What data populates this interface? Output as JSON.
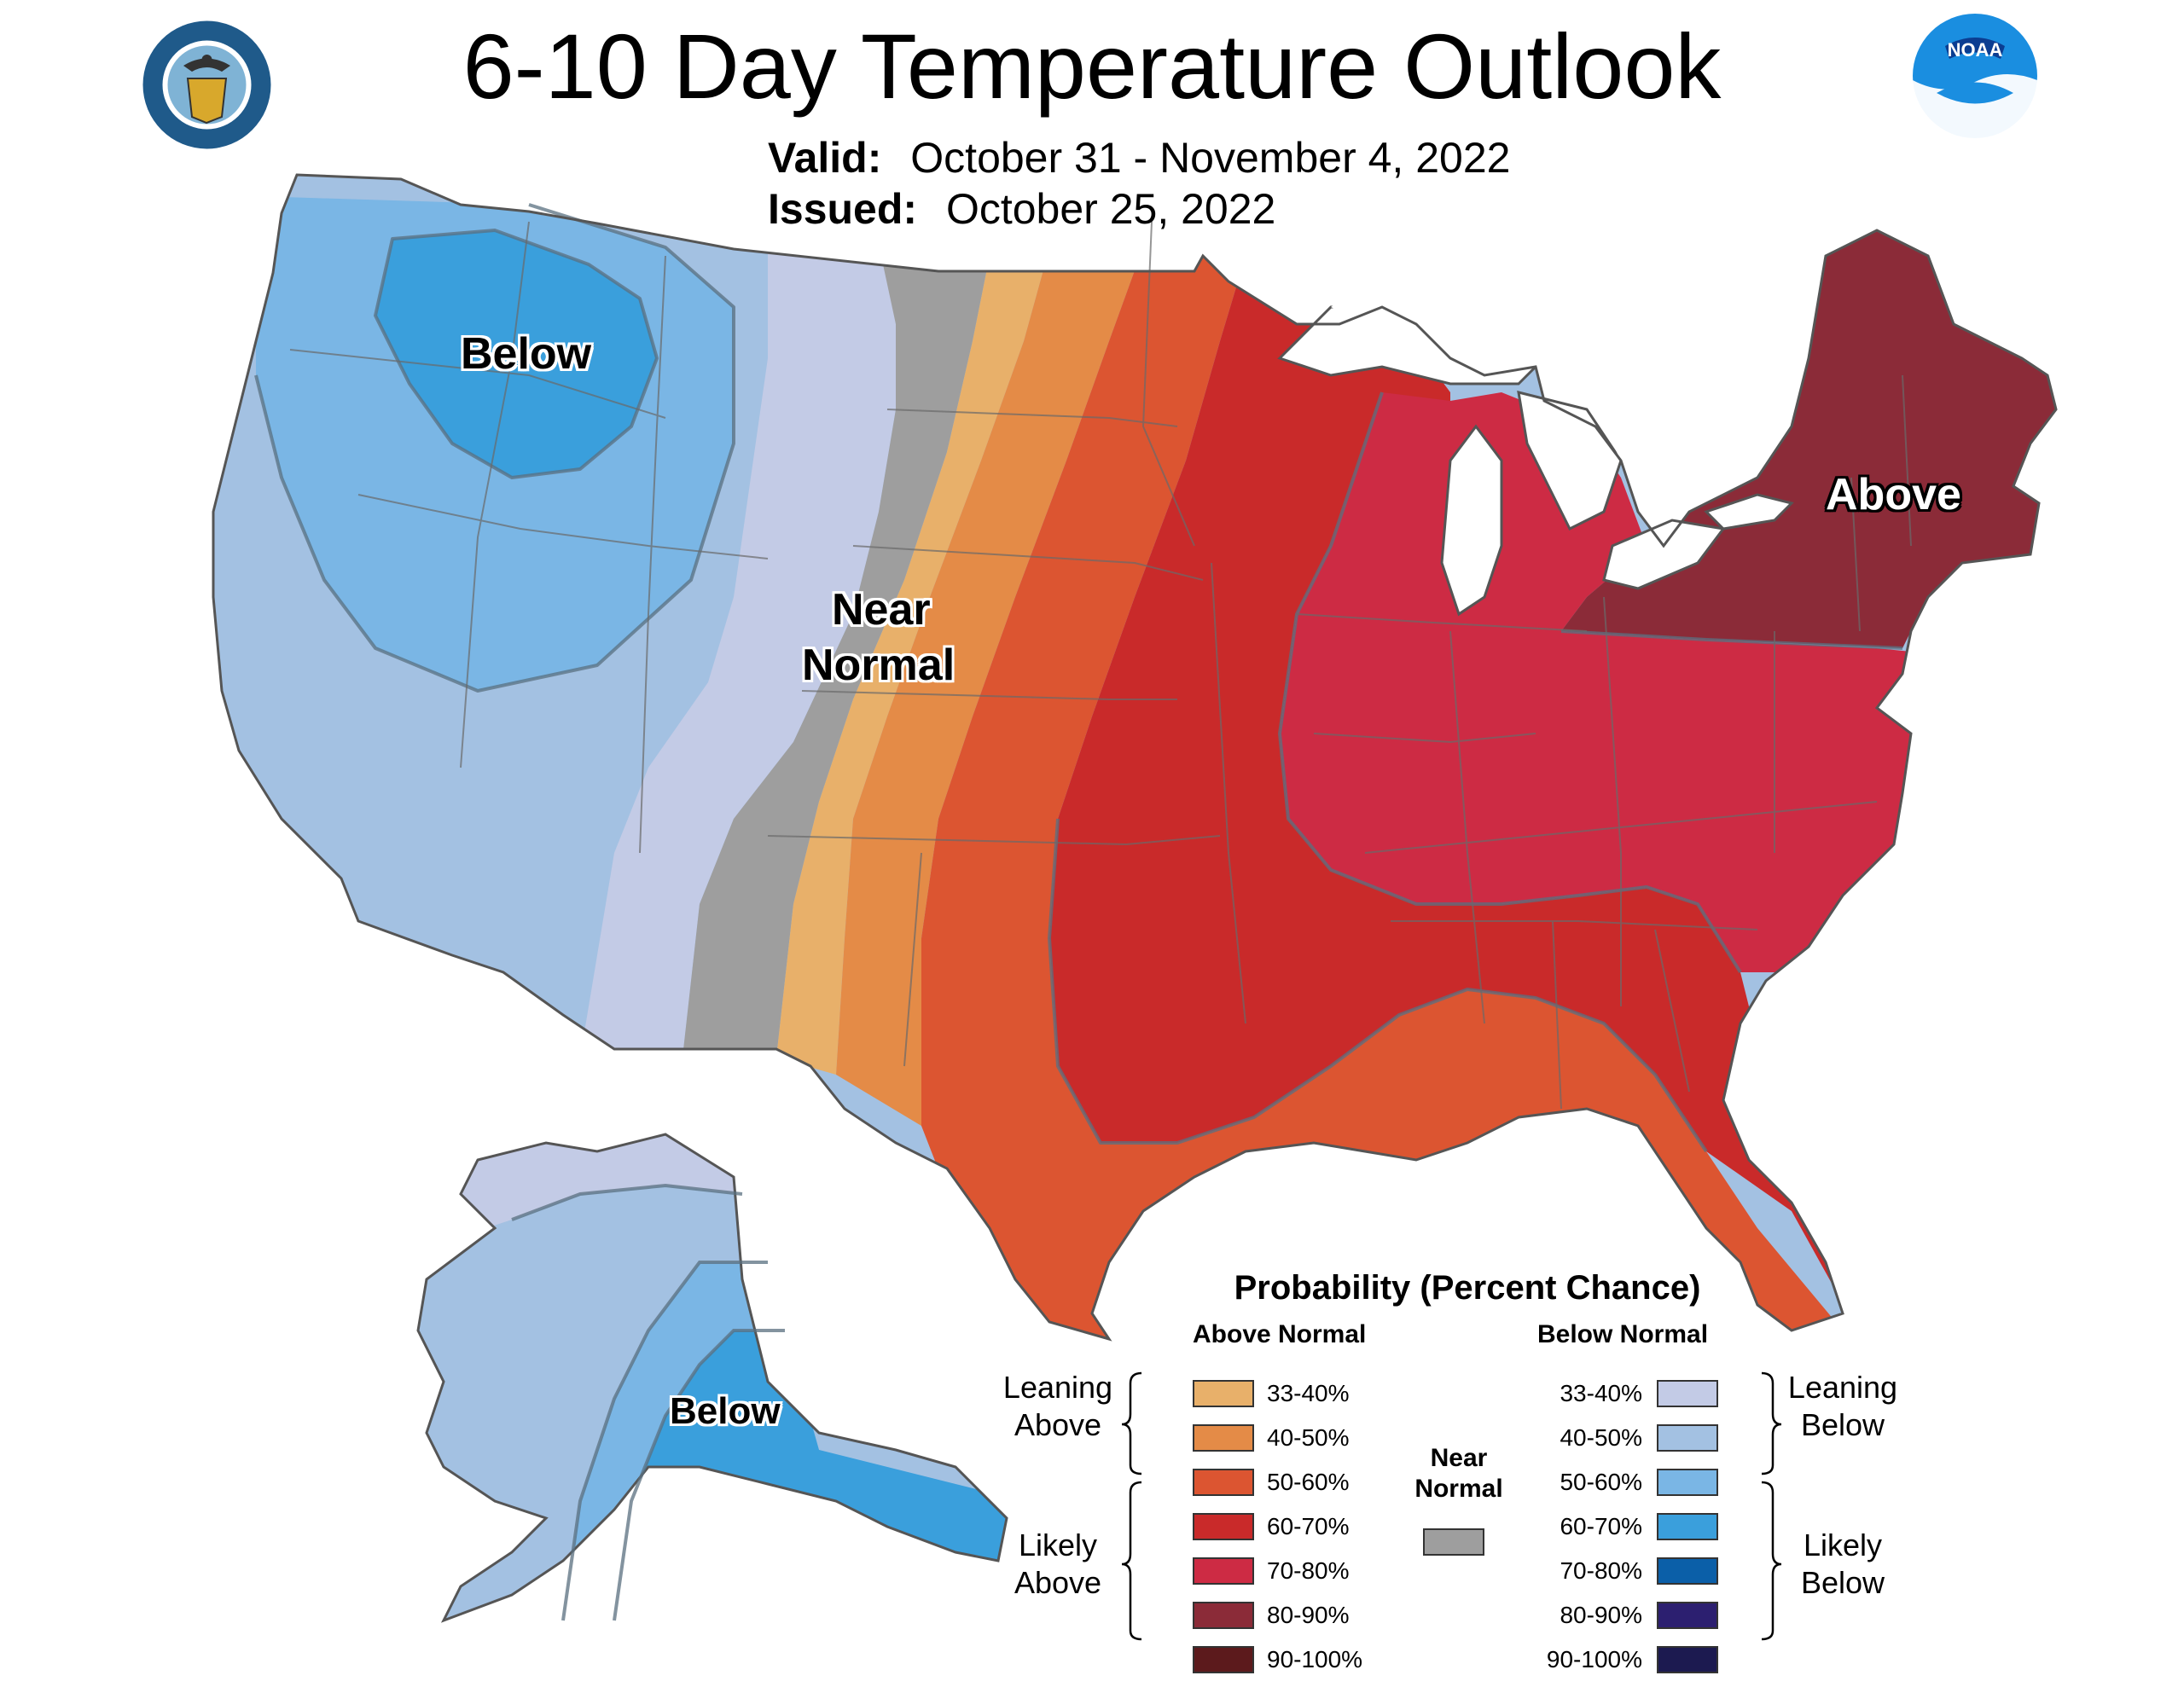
{
  "title": "6-10 Day Temperature Outlook",
  "valid_label": "Valid:",
  "valid_value": "October 31 - November 4, 2022",
  "issued_label": "Issued:",
  "issued_value": "October 25, 2022",
  "logos": {
    "left": "department-of-commerce-seal",
    "right": "noaa-logo",
    "noaa_text": "NOAA"
  },
  "map_labels": {
    "below_west": "Below",
    "near_normal_1": "Near",
    "near_normal_2": "Normal",
    "above_east": "Above",
    "below_alaska": "Below"
  },
  "legend": {
    "title": "Probability (Percent Chance)",
    "above_header": "Above Normal",
    "below_header": "Below Normal",
    "near_header_1": "Near",
    "near_header_2": "Normal",
    "leaning_above_1": "Leaning",
    "leaning_above_2": "Above",
    "likely_above_1": "Likely",
    "likely_above_2": "Above",
    "leaning_below_1": "Leaning",
    "leaning_below_2": "Below",
    "likely_below_1": "Likely",
    "likely_below_2": "Below",
    "above": [
      {
        "label": "33-40%",
        "color": "#e8b06a"
      },
      {
        "label": "40-50%",
        "color": "#e48b47"
      },
      {
        "label": "50-60%",
        "color": "#dc5531"
      },
      {
        "label": "60-70%",
        "color": "#c92a2a"
      },
      {
        "label": "70-80%",
        "color": "#cd2b44"
      },
      {
        "label": "80-90%",
        "color": "#8b2b38"
      },
      {
        "label": "90-100%",
        "color": "#5c1a1c"
      }
    ],
    "below": [
      {
        "label": "33-40%",
        "color": "#c3cbe6"
      },
      {
        "label": "40-50%",
        "color": "#a3c1e2"
      },
      {
        "label": "50-60%",
        "color": "#7ab6e5"
      },
      {
        "label": "60-70%",
        "color": "#3a9fdc"
      },
      {
        "label": "70-80%",
        "color": "#0b5fa8"
      },
      {
        "label": "80-90%",
        "color": "#2c1f70"
      },
      {
        "label": "90-100%",
        "color": "#1c1a50"
      }
    ],
    "near_color": "#9e9e9e"
  }
}
